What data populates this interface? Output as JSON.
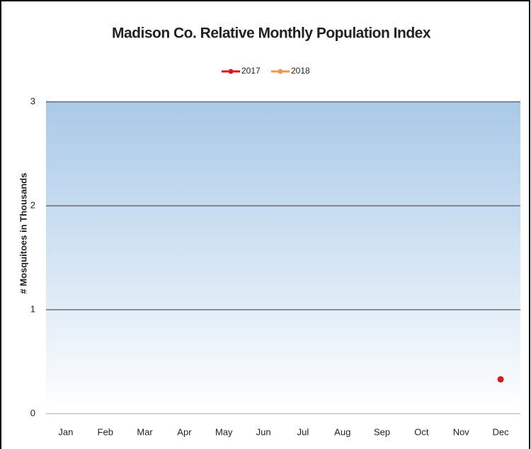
{
  "chart_data": {
    "type": "line",
    "title": "Madison Co. Relative Monthly Population Index",
    "y_label": "# Mosquitoes in Thousands",
    "categories": [
      "Jan",
      "Feb",
      "Mar",
      "Apr",
      "May",
      "Jun",
      "Jul",
      "Aug",
      "Sep",
      "Oct",
      "Nov",
      "Dec"
    ],
    "series": [
      {
        "name": "2017",
        "color": "#e0141e",
        "values": [
          null,
          null,
          null,
          null,
          null,
          null,
          null,
          null,
          null,
          null,
          null,
          0.33
        ]
      },
      {
        "name": "2018",
        "color": "#f0974a",
        "values": [
          null,
          null,
          null,
          null,
          null,
          null,
          null,
          null,
          null,
          null,
          null,
          null
        ]
      }
    ],
    "ylim": [
      0,
      3
    ],
    "yticks": [
      0,
      1,
      2,
      3
    ],
    "grid": true,
    "legend": "top"
  }
}
